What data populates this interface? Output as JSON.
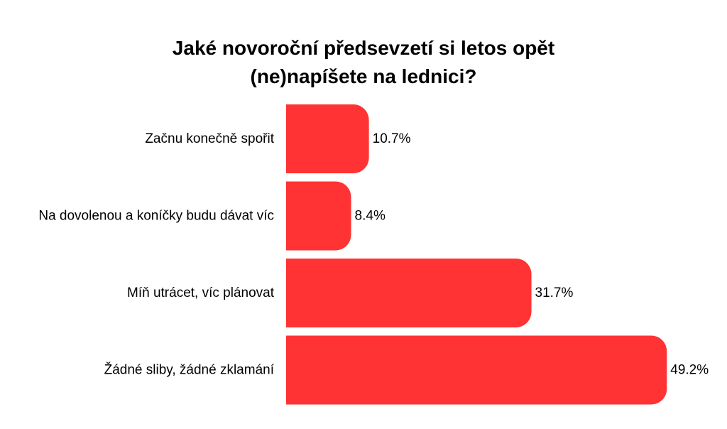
{
  "chart_data": {
    "type": "bar",
    "orientation": "horizontal",
    "title_lines": [
      "Jaké novoroční předsevzetí si letos opět",
      "(ne)napíšete na lednici?"
    ],
    "categories": [
      "Začnu konečně spořit",
      "Na dovolenou a koníčky budu dávat víc",
      "Míň utrácet, víc plánovat",
      "Žádné sliby, žádné zklamání"
    ],
    "values": [
      10.7,
      8.4,
      31.7,
      49.2
    ],
    "value_labels": [
      "10.7%",
      "8.4%",
      "31.7%",
      "49.2%"
    ],
    "unit": "%",
    "xlim": [
      0,
      50
    ],
    "grid": false,
    "legend": "none",
    "bar_color": "#ff3333",
    "text_color": "#000000"
  }
}
